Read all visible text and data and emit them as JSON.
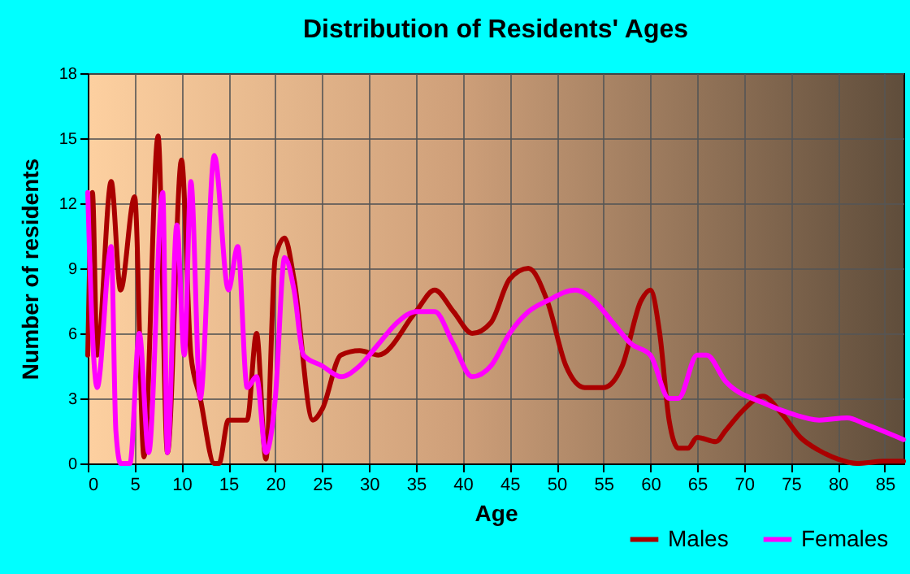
{
  "chart_data": {
    "type": "line",
    "title": "Distribution of Residents' Ages",
    "xlabel": "Age",
    "ylabel": "Number of residents",
    "xlim": [
      0,
      87
    ],
    "xticks": [
      0,
      5,
      10,
      15,
      20,
      25,
      30,
      35,
      40,
      45,
      50,
      55,
      60,
      65,
      70,
      75,
      80,
      85
    ],
    "ylim": [
      0,
      18
    ],
    "yticks": [
      0,
      3,
      6,
      9,
      12,
      15,
      18
    ],
    "grid": true,
    "legend": "bottom right",
    "marker": "none",
    "line_style": "solid",
    "series": [
      {
        "name": "Males",
        "color": "#aa0000",
        "x": [
          0,
          0.5,
          1,
          2.5,
          3.5,
          5,
          6,
          7.5,
          8.5,
          10,
          11,
          12,
          13.5,
          14,
          15,
          16,
          17,
          18,
          19,
          20,
          21,
          22,
          24,
          25,
          27,
          29,
          31,
          35,
          37,
          39,
          41,
          43,
          45,
          47,
          49,
          51,
          53,
          55,
          57,
          59,
          60,
          61,
          62,
          63,
          64,
          65,
          67,
          68,
          70,
          72,
          74,
          76,
          78,
          80,
          82,
          85,
          87
        ],
        "values": [
          5,
          12.5,
          5,
          13,
          8,
          12.3,
          0.3,
          15.1,
          0.5,
          14,
          5,
          3,
          0,
          0,
          2,
          2,
          2,
          6,
          0.2,
          9.5,
          10.4,
          8.5,
          2,
          2.5,
          5,
          5.2,
          5,
          7,
          8,
          7,
          6,
          6.5,
          8.5,
          9,
          7.5,
          4.5,
          3.5,
          3.5,
          4.5,
          7.5,
          8,
          6,
          2,
          0.7,
          0.7,
          1.2,
          1,
          1.5,
          2.5,
          3.1,
          2.3,
          1.2,
          0.6,
          0.2,
          0,
          0.1,
          0.1
        ]
      },
      {
        "name": "Females",
        "color": "#ff00ff",
        "x": [
          0,
          0.5,
          1,
          2.5,
          3,
          3.5,
          4.5,
          5.5,
          6.5,
          8,
          8.5,
          9.5,
          10.3,
          11,
          12,
          13.5,
          15,
          16,
          17,
          18,
          19,
          20,
          21,
          22,
          23,
          25,
          27,
          29,
          31,
          33,
          35,
          37,
          39,
          41,
          43,
          45,
          47,
          49,
          52,
          54,
          56,
          58,
          60,
          62,
          63,
          65,
          66,
          68,
          72,
          75,
          78,
          81,
          83,
          87
        ],
        "values": [
          12.5,
          6,
          3.5,
          10,
          1.5,
          0,
          0,
          6,
          0.5,
          12.5,
          0.5,
          11,
          5,
          13,
          3,
          14.2,
          8,
          10,
          3.5,
          4,
          0.5,
          3,
          9.5,
          8,
          5,
          4.5,
          4,
          4.5,
          5.5,
          6.5,
          7,
          7,
          5.5,
          4,
          4.5,
          6,
          7,
          7.5,
          8,
          7.5,
          6.5,
          5.5,
          5,
          3,
          3,
          5,
          5,
          3.8,
          2.8,
          2.3,
          2,
          2.1,
          1.8,
          1.1
        ]
      }
    ]
  }
}
